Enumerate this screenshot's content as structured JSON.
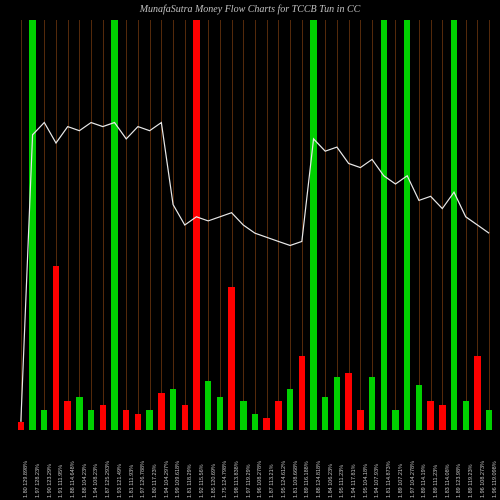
{
  "title": "MunafaSutra Money Flow Charts for TCCB                              Tun                                  in CC",
  "chart": {
    "type": "bar-with-line",
    "background_color": "#000000",
    "grid_color": "#8b4513",
    "title_color": "#c0c0c0",
    "title_fontsize": 10,
    "label_color": "#c0c0c0",
    "label_fontsize": 5.5,
    "line_color": "#e8e8e8",
    "line_width": 1.2,
    "bar_width_pct": 0.55,
    "n_bars": 41,
    "bars": [
      {
        "h": 0.02,
        "color": "#ff0000",
        "full": false
      },
      {
        "h": 1.0,
        "color": "#00d000",
        "full": true
      },
      {
        "h": 0.05,
        "color": "#00d000",
        "full": false
      },
      {
        "h": 0.4,
        "color": "#ff0000",
        "full": false
      },
      {
        "h": 0.07,
        "color": "#ff0000",
        "full": false
      },
      {
        "h": 0.08,
        "color": "#00d000",
        "full": false
      },
      {
        "h": 0.05,
        "color": "#00d000",
        "full": false
      },
      {
        "h": 0.06,
        "color": "#ff0000",
        "full": false
      },
      {
        "h": 1.0,
        "color": "#00d000",
        "full": true
      },
      {
        "h": 0.05,
        "color": "#ff0000",
        "full": false
      },
      {
        "h": 0.04,
        "color": "#ff0000",
        "full": false
      },
      {
        "h": 0.05,
        "color": "#00d000",
        "full": false
      },
      {
        "h": 0.09,
        "color": "#ff0000",
        "full": false
      },
      {
        "h": 0.1,
        "color": "#00d000",
        "full": false
      },
      {
        "h": 0.06,
        "color": "#ff0000",
        "full": false
      },
      {
        "h": 1.0,
        "color": "#ff0000",
        "full": true
      },
      {
        "h": 0.12,
        "color": "#00d000",
        "full": false
      },
      {
        "h": 0.08,
        "color": "#00d000",
        "full": false
      },
      {
        "h": 0.35,
        "color": "#ff0000",
        "full": false
      },
      {
        "h": 0.07,
        "color": "#00d000",
        "full": false
      },
      {
        "h": 0.04,
        "color": "#00d000",
        "full": false
      },
      {
        "h": 0.03,
        "color": "#ff0000",
        "full": false
      },
      {
        "h": 0.07,
        "color": "#ff0000",
        "full": false
      },
      {
        "h": 0.1,
        "color": "#00d000",
        "full": false
      },
      {
        "h": 0.18,
        "color": "#ff0000",
        "full": false
      },
      {
        "h": 1.0,
        "color": "#00d000",
        "full": true
      },
      {
        "h": 0.08,
        "color": "#00d000",
        "full": false
      },
      {
        "h": 0.13,
        "color": "#00d000",
        "full": false
      },
      {
        "h": 0.14,
        "color": "#ff0000",
        "full": false
      },
      {
        "h": 0.05,
        "color": "#ff0000",
        "full": false
      },
      {
        "h": 0.13,
        "color": "#00d000",
        "full": false
      },
      {
        "h": 1.0,
        "color": "#00d000",
        "full": true
      },
      {
        "h": 0.05,
        "color": "#00d000",
        "full": false
      },
      {
        "h": 1.0,
        "color": "#00d000",
        "full": true
      },
      {
        "h": 0.11,
        "color": "#00d000",
        "full": false
      },
      {
        "h": 0.07,
        "color": "#ff0000",
        "full": false
      },
      {
        "h": 0.06,
        "color": "#ff0000",
        "full": false
      },
      {
        "h": 1.0,
        "color": "#00d000",
        "full": true
      },
      {
        "h": 0.07,
        "color": "#00d000",
        "full": false
      },
      {
        "h": 0.18,
        "color": "#ff0000",
        "full": false
      },
      {
        "h": 0.05,
        "color": "#00d000",
        "full": false
      }
    ],
    "line_points": [
      0.98,
      0.28,
      0.25,
      0.3,
      0.26,
      0.27,
      0.25,
      0.26,
      0.25,
      0.29,
      0.26,
      0.27,
      0.25,
      0.45,
      0.5,
      0.48,
      0.49,
      0.48,
      0.47,
      0.5,
      0.52,
      0.53,
      0.54,
      0.55,
      0.54,
      0.29,
      0.32,
      0.31,
      0.35,
      0.36,
      0.34,
      0.38,
      0.4,
      0.38,
      0.44,
      0.43,
      0.46,
      0.42,
      0.48,
      0.5,
      0.52
    ],
    "x_labels": [
      "1.80 129.898%",
      "1.97 128.23%",
      "1.90 123.29%",
      "1.91 111.95%",
      "1.88 114.648%",
      "1.88 104.23%",
      "1.94 108.23%",
      "1.87 125.293%",
      "1.93 121.49%",
      "1.81 111.93%",
      "1.97 126.788%",
      "1.80 117.23%",
      "1.94 104.297%",
      "1.99 109.618%",
      "1.81 118.29%",
      "1.92 115.56%",
      "1.85 120.69%",
      "1.75 124.798%",
      "1.98 113.838%",
      "1.97 119.29%",
      "1.96 108.278%",
      "1.87 113.21%",
      "1.95 124.612%",
      "1.81 108.668%",
      "1.89 116.188%",
      "1.88 124.818%",
      "1.84 106.23%",
      "1.95 111.23%",
      "1.94 117.81%",
      "1.95 104.18%",
      "1.94 107.93%",
      "1.81 114.873%",
      "1.89 107.21%",
      "1.97 104.278%",
      "1.89 114.19%",
      "1.89 111.23%",
      "1.83 114.08%",
      "1.89 123.98%",
      "1.89 119.23%",
      "1.96 108.273%",
      "1.96 119.098%"
    ]
  }
}
